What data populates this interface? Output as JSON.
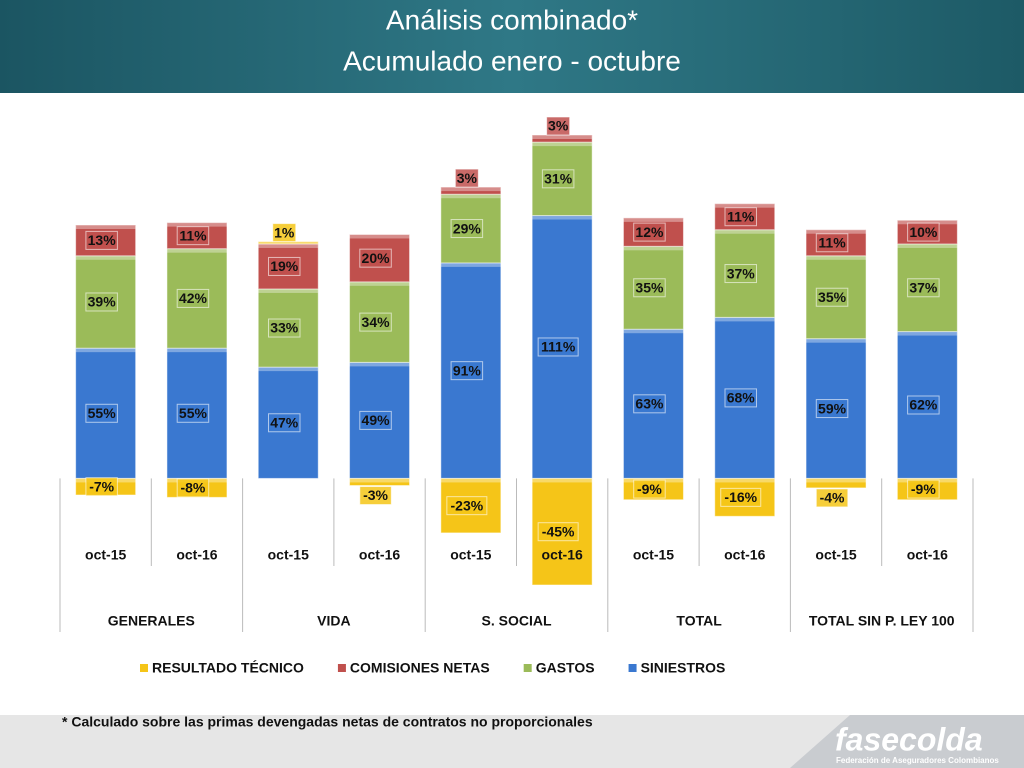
{
  "chart_data": {
    "type": "bar",
    "stacked": true,
    "title": "Análisis combinado*",
    "subtitle": "Acumulado  enero - octubre",
    "categories": [
      "oct-15",
      "oct-16",
      "oct-15",
      "oct-16",
      "oct-15",
      "oct-16",
      "oct-15",
      "oct-16",
      "oct-15",
      "oct-16"
    ],
    "groups": [
      "GENERALES",
      "VIDA",
      "S. SOCIAL",
      "TOTAL",
      "TOTAL SIN P. LEY 100"
    ],
    "series": [
      {
        "name": "SINIESTROS",
        "color": "#3a78d0",
        "values": [
          55,
          55,
          47,
          49,
          91,
          111,
          63,
          68,
          59,
          62
        ],
        "value_labels": [
          "55%",
          "55%",
          "47%",
          "49%",
          "91%",
          "111%",
          "63%",
          "68%",
          "59%",
          "62%"
        ]
      },
      {
        "name": "GASTOS",
        "color": "#9bbb59",
        "values": [
          39,
          42,
          33,
          34,
          29,
          31,
          35,
          37,
          35,
          37
        ],
        "value_labels": [
          "39%",
          "42%",
          "33%",
          "34%",
          "29%",
          "31%",
          "35%",
          "37%",
          "35%",
          "37%"
        ]
      },
      {
        "name": "COMISIONES NETAS",
        "color": "#c0504d",
        "values": [
          13,
          11,
          19,
          20,
          3,
          3,
          12,
          11,
          11,
          10
        ],
        "value_labels": [
          "13%",
          "11%",
          "19%",
          "20%",
          "3%",
          "3%",
          "12%",
          "11%",
          "11%",
          "10%"
        ]
      },
      {
        "name": "RESULTADO TÉCNICO",
        "color": "#f5c518",
        "values": [
          -7,
          -8,
          1,
          -3,
          -23,
          -45,
          -9,
          -16,
          -4,
          -9
        ],
        "value_labels": [
          "-7%",
          "-8%",
          "1%",
          "-3%",
          "-23%",
          "-45%",
          "-9%",
          "-16%",
          "-4%",
          "-9%"
        ]
      }
    ],
    "legend": "bottom"
  },
  "note": "* Calculado sobre las primas devengadas netas de contratos no proporcionales",
  "logo": {
    "name": "fasecolda",
    "tagline": "Federación de Aseguradores Colombianos"
  }
}
